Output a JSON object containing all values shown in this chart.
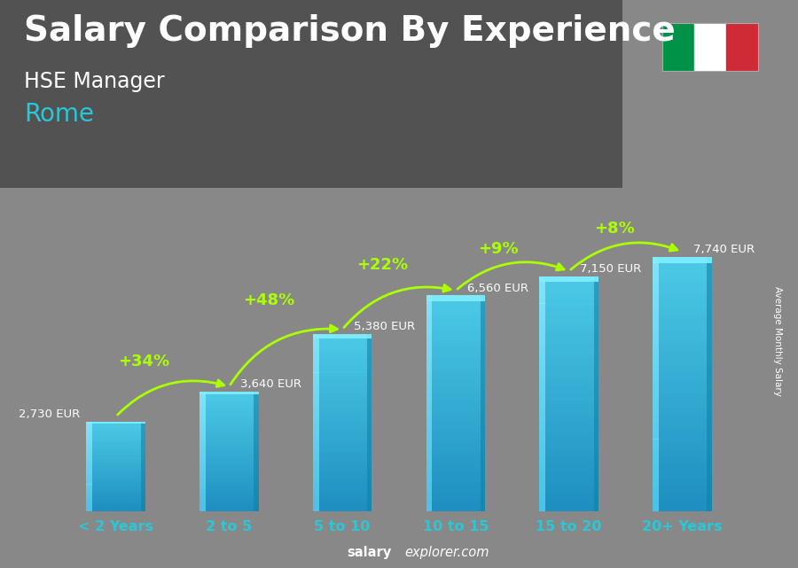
{
  "title": "Salary Comparison By Experience",
  "subtitle1": "HSE Manager",
  "subtitle2": "Rome",
  "categories": [
    "< 2 Years",
    "2 to 5",
    "5 to 10",
    "10 to 15",
    "15 to 20",
    "20+ Years"
  ],
  "values": [
    2730,
    3640,
    5380,
    6560,
    7150,
    7740
  ],
  "value_labels": [
    "2,730 EUR",
    "3,640 EUR",
    "5,380 EUR",
    "6,560 EUR",
    "7,150 EUR",
    "7,740 EUR"
  ],
  "pct_labels": [
    "+34%",
    "+48%",
    "+22%",
    "+9%",
    "+8%"
  ],
  "bar_color_main": "#29b9e8",
  "bar_color_light": "#55d4f5",
  "bar_color_dark": "#1a8ab5",
  "bar_color_edge_light": "#7ae4ff",
  "bar_alpha": 0.88,
  "bg_color": "#888888",
  "title_color": "#ffffff",
  "subtitle1_color": "#ffffff",
  "subtitle2_color": "#29c8d8",
  "label_color": "#ffffff",
  "pct_color": "#aaff00",
  "arrow_color": "#aaff00",
  "xlabel_color": "#29c8d8",
  "watermark_bold": "salary",
  "watermark_regular": "explorer.com",
  "ylabel_text": "Average Monthly Salary",
  "ylim": [
    0,
    9500
  ],
  "title_fontsize": 28,
  "subtitle1_fontsize": 17,
  "subtitle2_fontsize": 20,
  "bar_width": 0.52
}
